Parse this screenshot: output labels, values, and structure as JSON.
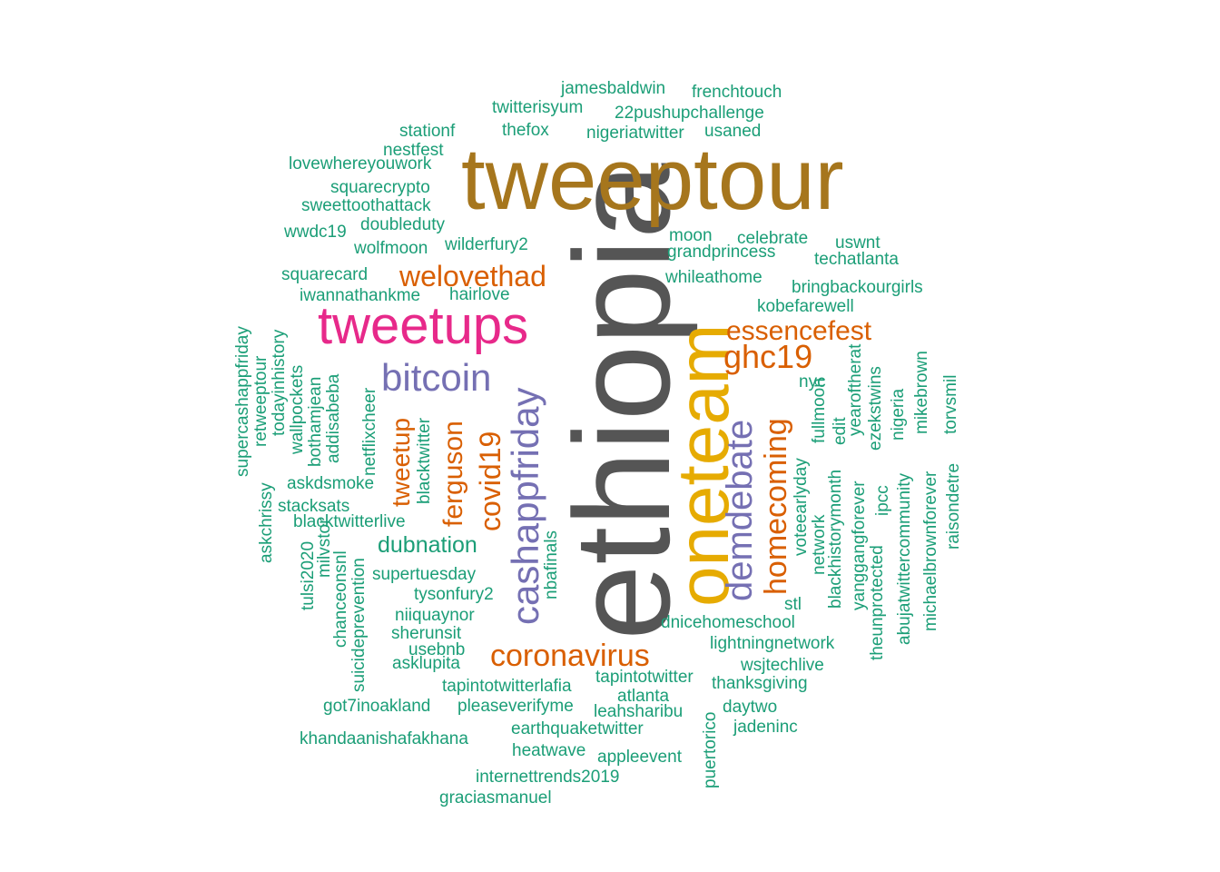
{
  "colors": {
    "teal": "#1b9e77",
    "orange": "#d95f02",
    "purple": "#7570b3",
    "magenta": "#e7298a",
    "gold": "#e6ab02",
    "brown": "#a6761d",
    "gray": "#555555"
  },
  "words": [
    {
      "text": "ethiopia",
      "color": "#555555"
    },
    {
      "text": "tweeptour",
      "color": "#a6761d"
    },
    {
      "text": "oneteam",
      "color": "#e6ab02"
    },
    {
      "text": "tweetups",
      "color": "#e7298a"
    },
    {
      "text": "bitcoin",
      "color": "#7570b3"
    },
    {
      "text": "cashappfriday",
      "color": "#7570b3"
    },
    {
      "text": "demdebate",
      "color": "#7570b3"
    },
    {
      "text": "welovethad",
      "color": "#d95f02"
    },
    {
      "text": "essencefest",
      "color": "#d95f02"
    },
    {
      "text": "ghc19",
      "color": "#d95f02"
    },
    {
      "text": "homecoming",
      "color": "#d95f02"
    },
    {
      "text": "coronavirus",
      "color": "#d95f02"
    },
    {
      "text": "covid19",
      "color": "#d95f02"
    },
    {
      "text": "ferguson",
      "color": "#d95f02"
    },
    {
      "text": "tweetup",
      "color": "#d95f02"
    },
    {
      "text": "jamesbaldwin",
      "color": "#1b9e77"
    },
    {
      "text": "frenchtouch",
      "color": "#1b9e77"
    },
    {
      "text": "twitterisyum",
      "color": "#1b9e77"
    },
    {
      "text": "22pushupchallenge",
      "color": "#1b9e77"
    },
    {
      "text": "stationf",
      "color": "#1b9e77"
    },
    {
      "text": "thefox",
      "color": "#1b9e77"
    },
    {
      "text": "nigeriatwitter",
      "color": "#1b9e77"
    },
    {
      "text": "usaned",
      "color": "#1b9e77"
    },
    {
      "text": "nestfest",
      "color": "#1b9e77"
    },
    {
      "text": "lovewhereyouwork",
      "color": "#1b9e77"
    },
    {
      "text": "squarecrypto",
      "color": "#1b9e77"
    },
    {
      "text": "sweettoothattack",
      "color": "#1b9e77"
    },
    {
      "text": "doubleduty",
      "color": "#1b9e77"
    },
    {
      "text": "wwdc19",
      "color": "#1b9e77"
    },
    {
      "text": "wolfmoon",
      "color": "#1b9e77"
    },
    {
      "text": "wilderfury2",
      "color": "#1b9e77"
    },
    {
      "text": "moon",
      "color": "#1b9e77"
    },
    {
      "text": "celebrate",
      "color": "#1b9e77"
    },
    {
      "text": "uswnt",
      "color": "#1b9e77"
    },
    {
      "text": "grandprincess",
      "color": "#1b9e77"
    },
    {
      "text": "techatlanta",
      "color": "#1b9e77"
    },
    {
      "text": "squarecard",
      "color": "#1b9e77"
    },
    {
      "text": "whileathome",
      "color": "#1b9e77"
    },
    {
      "text": "bringbackourgirls",
      "color": "#1b9e77"
    },
    {
      "text": "iwannathankme",
      "color": "#1b9e77"
    },
    {
      "text": "hairlove",
      "color": "#1b9e77"
    },
    {
      "text": "kobefarewell",
      "color": "#1b9e77"
    },
    {
      "text": "nyc",
      "color": "#1b9e77"
    },
    {
      "text": "supercashappfriday",
      "color": "#1b9e77"
    },
    {
      "text": "retweeptour",
      "color": "#1b9e77"
    },
    {
      "text": "todayinhistory",
      "color": "#1b9e77"
    },
    {
      "text": "wallpockets",
      "color": "#1b9e77"
    },
    {
      "text": "bothamjean",
      "color": "#1b9e77"
    },
    {
      "text": "addisabeba",
      "color": "#1b9e77"
    },
    {
      "text": "netflixcheer",
      "color": "#1b9e77"
    },
    {
      "text": "blacktwitter",
      "color": "#1b9e77"
    },
    {
      "text": "askchrissy",
      "color": "#1b9e77"
    },
    {
      "text": "askdsmoke",
      "color": "#1b9e77"
    },
    {
      "text": "stacksats",
      "color": "#1b9e77"
    },
    {
      "text": "blacktwitterlive",
      "color": "#1b9e77"
    },
    {
      "text": "tulsi2020",
      "color": "#1b9e77"
    },
    {
      "text": "milvstor",
      "color": "#1b9e77"
    },
    {
      "text": "chanceonsnl",
      "color": "#1b9e77"
    },
    {
      "text": "suicideprevention",
      "color": "#1b9e77"
    },
    {
      "text": "dubnation",
      "color": "#1b9e77"
    },
    {
      "text": "nbafinals",
      "color": "#1b9e77"
    },
    {
      "text": "supertuesday",
      "color": "#1b9e77"
    },
    {
      "text": "tysonfury2",
      "color": "#1b9e77"
    },
    {
      "text": "niiquaynor",
      "color": "#1b9e77"
    },
    {
      "text": "sherunsit",
      "color": "#1b9e77"
    },
    {
      "text": "usebnb",
      "color": "#1b9e77"
    },
    {
      "text": "asklupita",
      "color": "#1b9e77"
    },
    {
      "text": "tapintotwitterlafia",
      "color": "#1b9e77"
    },
    {
      "text": "tapintotwitter",
      "color": "#1b9e77"
    },
    {
      "text": "atlanta",
      "color": "#1b9e77"
    },
    {
      "text": "got7inoakland",
      "color": "#1b9e77"
    },
    {
      "text": "pleaseverifyme",
      "color": "#1b9e77"
    },
    {
      "text": "leahsharibu",
      "color": "#1b9e77"
    },
    {
      "text": "earthquaketwitter",
      "color": "#1b9e77"
    },
    {
      "text": "khandaanishafakhana",
      "color": "#1b9e77"
    },
    {
      "text": "heatwave",
      "color": "#1b9e77"
    },
    {
      "text": "appleevent",
      "color": "#1b9e77"
    },
    {
      "text": "internettrends2019",
      "color": "#1b9e77"
    },
    {
      "text": "graciasmanuel",
      "color": "#1b9e77"
    },
    {
      "text": "puertorico",
      "color": "#1b9e77"
    },
    {
      "text": "daytwo",
      "color": "#1b9e77"
    },
    {
      "text": "jadeninc",
      "color": "#1b9e77"
    },
    {
      "text": "thanksgiving",
      "color": "#1b9e77"
    },
    {
      "text": "wsjtechlive",
      "color": "#1b9e77"
    },
    {
      "text": "lightningnetwork",
      "color": "#1b9e77"
    },
    {
      "text": "dnicehomeschool",
      "color": "#1b9e77"
    },
    {
      "text": "stl",
      "color": "#1b9e77"
    },
    {
      "text": "voteearlyday",
      "color": "#1b9e77"
    },
    {
      "text": "network",
      "color": "#1b9e77"
    },
    {
      "text": "fullmoon",
      "color": "#1b9e77"
    },
    {
      "text": "blackhistorymonth",
      "color": "#1b9e77"
    },
    {
      "text": "edit",
      "color": "#1b9e77"
    },
    {
      "text": "yanggangforever",
      "color": "#1b9e77"
    },
    {
      "text": "yearoftherat",
      "color": "#1b9e77"
    },
    {
      "text": "theunprotected",
      "color": "#1b9e77"
    },
    {
      "text": "ezekstwins",
      "color": "#1b9e77"
    },
    {
      "text": "ipcc",
      "color": "#1b9e77"
    },
    {
      "text": "nigeria",
      "color": "#1b9e77"
    },
    {
      "text": "abujatwittercommunity",
      "color": "#1b9e77"
    },
    {
      "text": "mikebrown",
      "color": "#1b9e77"
    },
    {
      "text": "michaelbrownforever",
      "color": "#1b9e77"
    },
    {
      "text": "torvsmil",
      "color": "#1b9e77"
    },
    {
      "text": "raisondetre",
      "color": "#1b9e77"
    }
  ]
}
